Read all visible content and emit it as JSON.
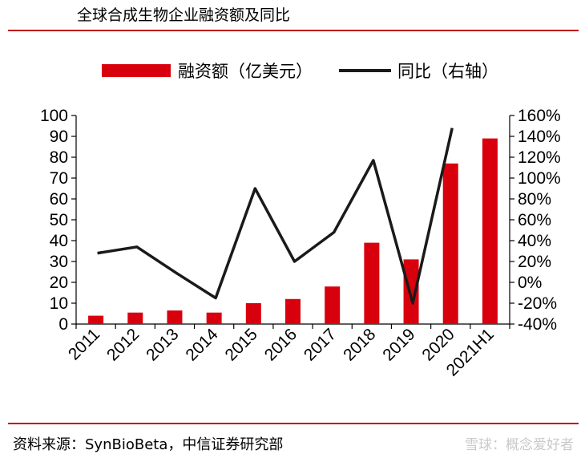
{
  "header": {
    "title": "全球合成生物企业融资额及同比"
  },
  "footer": {
    "source": "资料来源：SynBioBeta，中信证券研究部",
    "watermark": "雪球：概念爱好者"
  },
  "colors": {
    "bar": "#d9000d",
    "line": "#1a1a1a",
    "rule": "#c0000b"
  },
  "chart_data": {
    "type": "bar",
    "title": "全球合成生物企业融资额及同比",
    "categories": [
      "2011",
      "2012",
      "2013",
      "2014",
      "2015",
      "2016",
      "2017",
      "2018",
      "2019",
      "2020",
      "2021H1"
    ],
    "series": [
      {
        "name": "融资额（亿美元）",
        "type": "bar",
        "axis": "left",
        "values": [
          4,
          5.5,
          6.5,
          5.5,
          10,
          12,
          18,
          39,
          31,
          77,
          89
        ]
      },
      {
        "name": "同比（右轴）",
        "type": "line",
        "axis": "right",
        "unit": "%",
        "values": [
          28,
          34,
          9,
          -15,
          90,
          20,
          48,
          117,
          -20,
          148,
          null
        ]
      }
    ],
    "left_axis": {
      "min": 0,
      "max": 100,
      "step": 10,
      "ticks": [
        "0",
        "10",
        "20",
        "30",
        "40",
        "50",
        "60",
        "70",
        "80",
        "90",
        "100"
      ]
    },
    "right_axis": {
      "min": -40,
      "max": 160,
      "step": 20,
      "ticks": [
        "-40%",
        "-20%",
        "0%",
        "20%",
        "40%",
        "60%",
        "80%",
        "100%",
        "120%",
        "140%",
        "160%"
      ]
    },
    "legend_position": "top-center",
    "grid": false
  }
}
